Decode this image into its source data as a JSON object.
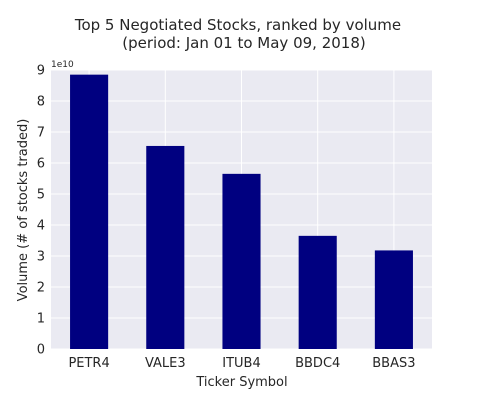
{
  "chart_data": {
    "type": "bar",
    "title": "Top 5 Negotiated Stocks, ranked by volume",
    "subtitle": "(period: Jan 01 to May 09, 2018)",
    "xlabel": "Ticker Symbol",
    "ylabel": "Volume (# of stocks traded)",
    "y_offset_label": "1e10",
    "y_multiplier": 10000000000,
    "categories": [
      "PETR4",
      "VALE3",
      "ITUB4",
      "BBDC4",
      "BBAS3"
    ],
    "values": [
      88500000000,
      65500000000,
      56500000000,
      36500000000,
      31800000000
    ],
    "ylim": [
      0,
      9
    ],
    "yticks": [
      "0",
      "1",
      "2",
      "3",
      "4",
      "5",
      "6",
      "7",
      "8",
      "9"
    ],
    "grid": true,
    "colors": {
      "bar": "#000080",
      "plot_background": "#EAEAF2",
      "grid": "#ffffff",
      "text": "#262626"
    }
  }
}
